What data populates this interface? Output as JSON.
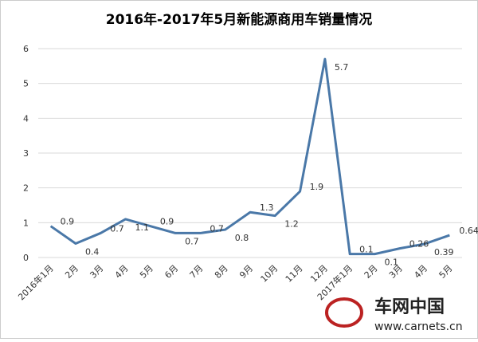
{
  "chart_data": {
    "type": "line",
    "title": "2016年-2017年5月新能源商用车销量情况",
    "categories": [
      "2016年1月",
      "2月",
      "3月",
      "4月",
      "5月",
      "6月",
      "7月",
      "8月",
      "9月",
      "10月",
      "11月",
      "12月",
      "2017年1月",
      "2月",
      "3月",
      "4月",
      "5月"
    ],
    "series": [
      {
        "name": "销量",
        "color": "#4a78a8",
        "values": [
          0.9,
          0.4,
          0.7,
          1.1,
          0.9,
          0.7,
          0.7,
          0.8,
          1.3,
          1.2,
          1.9,
          5.7,
          0.1,
          0.1,
          0.26,
          0.39,
          0.64
        ]
      }
    ],
    "ylim": [
      0,
      6
    ],
    "yticks": [
      0,
      1,
      2,
      3,
      4,
      5,
      6
    ],
    "grid": true
  },
  "watermark": {
    "name": "车网中国",
    "url": "www.carnets.cn"
  }
}
